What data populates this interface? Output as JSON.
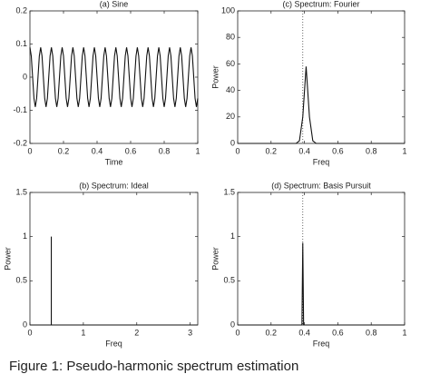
{
  "chart_data": [
    {
      "type": "line",
      "title": "(a) Sine",
      "xlabel": "Time",
      "xlim": [
        0,
        1
      ],
      "ylim": [
        -0.2,
        0.2
      ],
      "xticks": [
        0,
        0.2,
        0.4,
        0.6,
        0.8,
        1
      ],
      "yticks": [
        -0.2,
        -0.1,
        0,
        0.1,
        0.2
      ],
      "color": "#111111",
      "series": [
        {
          "x": [
            0,
            0.008,
            0.016,
            0.024,
            0.032,
            0.04,
            0.048,
            0.056,
            0.064,
            0.072,
            0.08,
            0.088,
            0.096,
            0.104,
            0.112,
            0.12,
            0.128,
            0.136,
            0.144,
            0.152,
            0.16,
            0.168,
            0.176,
            0.184,
            0.192,
            0.2,
            0.208,
            0.216,
            0.224,
            0.232,
            0.24,
            0.248,
            0.256,
            0.264,
            0.272,
            0.28,
            0.288,
            0.296,
            0.304,
            0.312,
            0.32,
            0.328,
            0.336,
            0.344,
            0.352,
            0.36,
            0.368,
            0.376,
            0.384,
            0.392,
            0.4,
            0.408,
            0.416,
            0.424,
            0.432,
            0.44,
            0.448,
            0.456,
            0.464,
            0.472,
            0.48,
            0.488,
            0.496,
            0.504,
            0.512,
            0.52,
            0.528,
            0.536,
            0.544,
            0.552,
            0.56,
            0.568,
            0.576,
            0.584,
            0.592,
            0.6,
            0.608,
            0.616,
            0.624,
            0.632,
            0.64,
            0.648,
            0.656,
            0.664,
            0.672,
            0.68,
            0.688,
            0.696,
            0.704,
            0.712,
            0.72,
            0.728,
            0.736,
            0.744,
            0.752,
            0.76,
            0.768,
            0.776,
            0.784,
            0.792,
            0.8,
            0.808,
            0.816,
            0.824,
            0.832,
            0.84,
            0.848,
            0.856,
            0.864,
            0.872,
            0.88,
            0.888,
            0.896,
            0.904,
            0.912,
            0.92,
            0.928,
            0.936,
            0.944,
            0.952,
            0.96,
            0.968,
            0.976,
            0.984,
            0.992,
            1
          ],
          "values": [
            0.09,
            0.064,
            0,
            -0.064,
            -0.09,
            -0.064,
            0,
            0.064,
            0.09,
            0.064,
            0,
            -0.064,
            -0.09,
            -0.064,
            0,
            0.064,
            0.09,
            0.064,
            0,
            -0.064,
            -0.09,
            -0.064,
            0,
            0.064,
            0.09,
            0.064,
            0,
            -0.064,
            -0.09,
            -0.064,
            0,
            0.064,
            0.09,
            0.064,
            0,
            -0.064,
            -0.09,
            -0.064,
            0,
            0.064,
            0.09,
            0.064,
            0,
            -0.064,
            -0.09,
            -0.064,
            0,
            0.064,
            0.09,
            0.064,
            0,
            -0.064,
            -0.09,
            -0.064,
            0,
            0.064,
            0.09,
            0.064,
            0,
            -0.064,
            -0.09,
            -0.064,
            0,
            0.064,
            0.09,
            0.064,
            0,
            -0.064,
            -0.09,
            -0.064,
            0,
            0.064,
            0.09,
            0.064,
            0,
            -0.064,
            -0.09,
            -0.064,
            0,
            0.064,
            0.09,
            0.064,
            0,
            -0.064,
            -0.09,
            -0.064,
            0,
            0.064,
            0.09,
            0.064,
            0,
            -0.064,
            -0.09,
            -0.064,
            0,
            0.064,
            0.09,
            0.064,
            0,
            -0.064,
            -0.09,
            -0.064,
            0,
            0.064,
            0.09,
            0.064,
            0,
            -0.064,
            -0.09,
            -0.064,
            0,
            0.064,
            0.09,
            0.064,
            0,
            -0.064,
            -0.09,
            -0.064,
            0,
            0.064,
            0.09,
            0.064,
            0,
            -0.064,
            -0.09,
            -0.064
          ]
        }
      ]
    },
    {
      "type": "line",
      "title": "(c) Spectrum: Fourier",
      "xlabel": "Freq",
      "ylabel": "Power",
      "xlim": [
        0,
        1
      ],
      "ylim": [
        0,
        100
      ],
      "xticks": [
        0,
        0.2,
        0.4,
        0.6,
        0.8,
        1
      ],
      "yticks": [
        0,
        20,
        40,
        60,
        80,
        100
      ],
      "color": "#111111",
      "vline": 0.39,
      "series": [
        {
          "x": [
            0,
            0.35,
            0.37,
            0.39,
            0.41,
            0.43,
            0.45,
            0.47,
            1
          ],
          "values": [
            0,
            0,
            2,
            20,
            58,
            20,
            2,
            0,
            0
          ]
        }
      ]
    },
    {
      "type": "line",
      "title": "(b) Spectrum: Ideal",
      "xlabel": "Freq",
      "ylabel": "Power",
      "xlim": [
        0,
        3.14159
      ],
      "ylim": [
        0,
        1.5
      ],
      "xticks": [
        0,
        1,
        2,
        3
      ],
      "yticks": [
        0,
        0.5,
        1,
        1.5
      ],
      "color": "#111111",
      "series": [
        {
          "x": [
            0,
            0.4,
            0.4,
            0.4,
            3.14159
          ],
          "values": [
            0,
            0,
            1,
            0,
            0
          ]
        }
      ]
    },
    {
      "type": "line",
      "title": "(d) Spectrum: Basis Pursuit",
      "xlabel": "Freq",
      "ylabel": "Power",
      "xlim": [
        0,
        1
      ],
      "ylim": [
        0,
        1.5
      ],
      "xticks": [
        0,
        0.2,
        0.4,
        0.6,
        0.8,
        1
      ],
      "yticks": [
        0,
        0.5,
        1,
        1.5
      ],
      "color": "#111111",
      "vline": 0.39,
      "series": [
        {
          "x": [
            0,
            0.385,
            0.39,
            0.395,
            1
          ],
          "values": [
            0,
            0,
            0.93,
            0,
            0
          ]
        }
      ]
    }
  ],
  "caption": "Figure 1: Pseudo-harmonic spectrum estimation"
}
